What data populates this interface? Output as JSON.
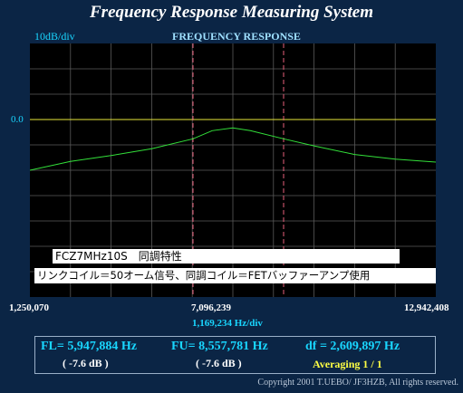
{
  "app": {
    "title": "Frequency Response Measuring System"
  },
  "graph": {
    "scale_label": "10dB/div",
    "subtitle": "FREQUENCY RESPONSE",
    "ref_label": "0.0",
    "start_freq": "1,250,070",
    "center_freq": "7,096,239",
    "end_freq": "12,942,408",
    "freq_per_div": "1,169,234  Hz/div",
    "note1": "FCZ7MHz10S　同調特性",
    "note2": "リンクコイル＝50オーム信号、同調コイル＝FETバッファーアンプ使用"
  },
  "measurements": {
    "fl": "FL= 5,947,884  Hz",
    "fl_db": "( -7.6 dB )",
    "fu": "FU= 8,557,781  Hz",
    "fu_db": "( -7.6 dB )",
    "df": "df = 2,609,897  Hz",
    "averaging": "Averaging    1 / 1"
  },
  "footer": {
    "copyright": "Copyright 2001 T.UEBO/ JF3HZB, All rights reserved."
  },
  "colors": {
    "background": "#0b2545",
    "trace": "#33e03a",
    "reference_line": "#e8e83a",
    "marker": "#e8607a",
    "grid": "#5a5a5a"
  },
  "chart_data": {
    "type": "line",
    "xlabel": "",
    "ylabel": "",
    "x_range_hz": [
      1250070,
      12942408
    ],
    "y_scale_db_per_div": 10,
    "ref_level_db": 0.0,
    "grid": true,
    "markers_hz": [
      5947884,
      8557781
    ],
    "series": [
      {
        "x_hz": [
          1250070,
          2419304,
          3588538,
          4757772,
          5947884,
          6500000,
          7096239,
          7600000,
          8557781,
          9434171,
          10603405,
          11772639,
          12942408
        ],
        "y_db": [
          -20.0,
          -16.5,
          -14.2,
          -11.5,
          -7.6,
          -4.4,
          -3.3,
          -4.4,
          -7.6,
          -10.4,
          -13.8,
          -15.6,
          -16.8
        ]
      }
    ]
  }
}
